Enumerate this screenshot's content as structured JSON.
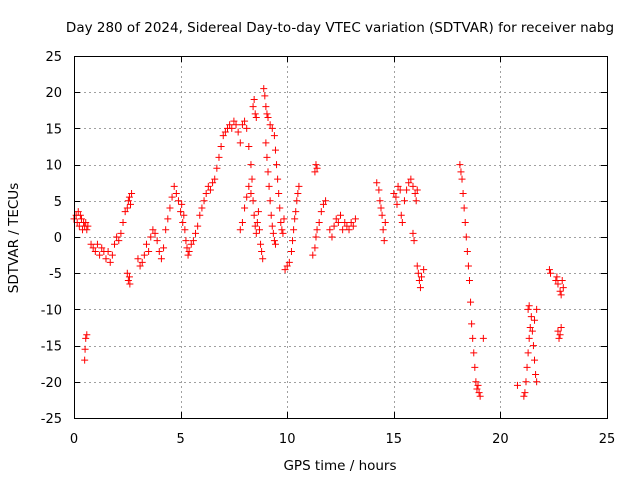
{
  "chart_data": {
    "type": "scatter",
    "title": "Day 280 of 2024, Sidereal Day-to-day VTEC variation (SDTVAR) for receiver nabg",
    "xlabel": "GPS time / hours",
    "ylabel": "SDTVAR / TECUs",
    "xlim": [
      0,
      25
    ],
    "ylim": [
      -25,
      25
    ],
    "x_ticks": [
      0,
      5,
      10,
      15,
      20,
      25
    ],
    "y_ticks": [
      -25,
      -20,
      -15,
      -10,
      -5,
      0,
      5,
      10,
      15,
      20,
      25
    ],
    "x_tick_labels": [
      "0",
      "5",
      "10",
      "15",
      "20",
      "25"
    ],
    "y_tick_labels": [
      "-25",
      "-20",
      "-15",
      "-10",
      "-5",
      "0",
      "5",
      "10",
      "15",
      "20",
      "25"
    ],
    "grid": true,
    "marker": "plus",
    "color": "#ff0000",
    "series": [
      {
        "name": "SDTVAR",
        "points": [
          [
            0.0,
            2.5
          ],
          [
            0.1,
            3.0
          ],
          [
            0.15,
            2.0
          ],
          [
            0.2,
            3.5
          ],
          [
            0.25,
            1.5
          ],
          [
            0.3,
            3.0
          ],
          [
            0.35,
            2.5
          ],
          [
            0.4,
            1.0
          ],
          [
            0.45,
            2.0
          ],
          [
            0.5,
            1.5
          ],
          [
            0.55,
            2.0
          ],
          [
            0.6,
            1.0
          ],
          [
            0.65,
            1.5
          ],
          [
            0.5,
            -17.0
          ],
          [
            0.52,
            -15.5
          ],
          [
            0.55,
            -14.0
          ],
          [
            0.6,
            -13.5
          ],
          [
            0.8,
            -1.0
          ],
          [
            0.9,
            -1.5
          ],
          [
            1.0,
            -2.0
          ],
          [
            1.1,
            -1.0
          ],
          [
            1.2,
            -2.5
          ],
          [
            1.3,
            -1.5
          ],
          [
            1.4,
            -2.0
          ],
          [
            1.5,
            -3.0
          ],
          [
            1.6,
            -2.0
          ],
          [
            1.7,
            -3.5
          ],
          [
            1.8,
            -2.5
          ],
          [
            1.9,
            -1.0
          ],
          [
            2.0,
            0.0
          ],
          [
            2.1,
            -0.5
          ],
          [
            2.2,
            0.5
          ],
          [
            2.3,
            2.0
          ],
          [
            2.4,
            3.5
          ],
          [
            2.5,
            4.0
          ],
          [
            2.55,
            5.0
          ],
          [
            2.6,
            5.5
          ],
          [
            2.65,
            4.5
          ],
          [
            2.7,
            6.0
          ],
          [
            2.5,
            -5.0
          ],
          [
            2.55,
            -6.0
          ],
          [
            2.6,
            -5.5
          ],
          [
            2.62,
            -6.5
          ],
          [
            3.0,
            -3.0
          ],
          [
            3.1,
            -4.0
          ],
          [
            3.2,
            -3.5
          ],
          [
            3.3,
            -2.5
          ],
          [
            3.4,
            -1.0
          ],
          [
            3.5,
            -2.0
          ],
          [
            3.6,
            0.0
          ],
          [
            3.7,
            1.0
          ],
          [
            3.8,
            0.5
          ],
          [
            3.9,
            -0.5
          ],
          [
            4.0,
            -2.0
          ],
          [
            4.1,
            -3.0
          ],
          [
            4.2,
            -1.5
          ],
          [
            4.3,
            1.0
          ],
          [
            4.4,
            2.5
          ],
          [
            4.5,
            4.0
          ],
          [
            4.6,
            5.5
          ],
          [
            4.7,
            7.0
          ],
          [
            4.8,
            6.0
          ],
          [
            4.9,
            5.0
          ],
          [
            5.0,
            3.5
          ],
          [
            5.05,
            4.5
          ],
          [
            5.1,
            2.0
          ],
          [
            5.15,
            3.0
          ],
          [
            5.2,
            1.0
          ],
          [
            5.25,
            -0.5
          ],
          [
            5.3,
            -1.5
          ],
          [
            5.35,
            -2.5
          ],
          [
            5.4,
            -2.0
          ],
          [
            5.5,
            -1.0
          ],
          [
            5.6,
            -0.5
          ],
          [
            5.7,
            0.5
          ],
          [
            5.8,
            1.5
          ],
          [
            5.9,
            3.0
          ],
          [
            6.0,
            4.0
          ],
          [
            6.1,
            5.0
          ],
          [
            6.2,
            6.0
          ],
          [
            6.3,
            7.0
          ],
          [
            6.4,
            6.5
          ],
          [
            6.5,
            7.5
          ],
          [
            6.6,
            8.0
          ],
          [
            6.7,
            9.5
          ],
          [
            6.8,
            11.0
          ],
          [
            6.9,
            12.5
          ],
          [
            7.0,
            14.0
          ],
          [
            7.1,
            14.5
          ],
          [
            7.2,
            15.0
          ],
          [
            7.3,
            15.5
          ],
          [
            7.4,
            15.0
          ],
          [
            7.5,
            16.0
          ],
          [
            7.6,
            15.5
          ],
          [
            7.7,
            14.5
          ],
          [
            7.8,
            13.0
          ],
          [
            7.9,
            15.5
          ],
          [
            8.0,
            16.0
          ],
          [
            8.1,
            15.0
          ],
          [
            8.2,
            12.5
          ],
          [
            8.3,
            10.0
          ],
          [
            7.8,
            1.0
          ],
          [
            7.9,
            2.0
          ],
          [
            8.0,
            4.0
          ],
          [
            8.1,
            5.5
          ],
          [
            8.2,
            7.0
          ],
          [
            8.3,
            6.0
          ],
          [
            8.35,
            8.0
          ],
          [
            8.4,
            5.0
          ],
          [
            8.45,
            3.0
          ],
          [
            8.5,
            1.5
          ],
          [
            8.55,
            0.5
          ],
          [
            8.6,
            2.0
          ],
          [
            8.65,
            3.5
          ],
          [
            8.7,
            1.0
          ],
          [
            8.75,
            -1.0
          ],
          [
            8.8,
            -2.0
          ],
          [
            8.85,
            -3.0
          ],
          [
            8.4,
            18.0
          ],
          [
            8.45,
            19.0
          ],
          [
            8.5,
            17.0
          ],
          [
            8.55,
            16.5
          ],
          [
            8.9,
            20.5
          ],
          [
            8.95,
            19.5
          ],
          [
            9.0,
            18.0
          ],
          [
            9.05,
            17.0
          ],
          [
            9.1,
            16.5
          ],
          [
            9.2,
            15.5
          ],
          [
            9.3,
            15.0
          ],
          [
            9.4,
            14.0
          ],
          [
            9.45,
            12.0
          ],
          [
            9.5,
            10.0
          ],
          [
            9.55,
            8.0
          ],
          [
            9.6,
            6.0
          ],
          [
            9.65,
            4.0
          ],
          [
            9.7,
            2.0
          ],
          [
            9.75,
            1.0
          ],
          [
            9.8,
            0.5
          ],
          [
            9.85,
            2.5
          ],
          [
            9.0,
            13.0
          ],
          [
            9.05,
            11.0
          ],
          [
            9.1,
            9.0
          ],
          [
            9.15,
            7.0
          ],
          [
            9.2,
            5.0
          ],
          [
            9.25,
            3.0
          ],
          [
            9.3,
            1.5
          ],
          [
            9.35,
            0.5
          ],
          [
            9.4,
            -0.5
          ],
          [
            9.45,
            -1.0
          ],
          [
            9.9,
            -4.5
          ],
          [
            10.0,
            -4.0
          ],
          [
            10.1,
            -3.5
          ],
          [
            10.2,
            -2.0
          ],
          [
            10.25,
            -0.5
          ],
          [
            10.3,
            1.0
          ],
          [
            10.35,
            2.5
          ],
          [
            10.4,
            3.5
          ],
          [
            10.45,
            5.0
          ],
          [
            10.5,
            6.0
          ],
          [
            10.55,
            7.0
          ],
          [
            11.2,
            -2.5
          ],
          [
            11.3,
            -1.5
          ],
          [
            11.35,
            0.0
          ],
          [
            11.4,
            1.0
          ],
          [
            11.5,
            2.0
          ],
          [
            11.6,
            3.5
          ],
          [
            11.7,
            4.5
          ],
          [
            11.8,
            5.0
          ],
          [
            11.3,
            9.0
          ],
          [
            11.35,
            10.0
          ],
          [
            11.4,
            9.5
          ],
          [
            12.0,
            1.0
          ],
          [
            12.1,
            0.0
          ],
          [
            12.2,
            1.5
          ],
          [
            12.3,
            2.5
          ],
          [
            12.4,
            2.0
          ],
          [
            12.5,
            3.0
          ],
          [
            12.6,
            1.0
          ],
          [
            12.7,
            2.0
          ],
          [
            12.8,
            1.5
          ],
          [
            12.9,
            1.0
          ],
          [
            13.0,
            2.0
          ],
          [
            13.1,
            1.5
          ],
          [
            13.2,
            2.5
          ],
          [
            14.2,
            7.5
          ],
          [
            14.3,
            6.5
          ],
          [
            14.35,
            5.0
          ],
          [
            14.4,
            4.0
          ],
          [
            14.45,
            3.0
          ],
          [
            14.5,
            1.0
          ],
          [
            14.55,
            -0.5
          ],
          [
            14.6,
            2.0
          ],
          [
            15.0,
            6.0
          ],
          [
            15.1,
            5.5
          ],
          [
            15.15,
            4.5
          ],
          [
            15.2,
            7.0
          ],
          [
            15.3,
            6.5
          ],
          [
            15.35,
            3.0
          ],
          [
            15.4,
            2.0
          ],
          [
            15.5,
            5.0
          ],
          [
            15.6,
            6.5
          ],
          [
            15.7,
            7.5
          ],
          [
            15.8,
            8.0
          ],
          [
            15.9,
            7.0
          ],
          [
            16.0,
            6.0
          ],
          [
            16.05,
            5.0
          ],
          [
            16.1,
            6.5
          ],
          [
            15.9,
            0.5
          ],
          [
            15.95,
            -0.5
          ],
          [
            16.1,
            -4.0
          ],
          [
            16.15,
            -5.0
          ],
          [
            16.2,
            -6.0
          ],
          [
            16.25,
            -7.0
          ],
          [
            16.3,
            -5.5
          ],
          [
            16.4,
            -4.5
          ],
          [
            18.1,
            10.0
          ],
          [
            18.15,
            9.0
          ],
          [
            18.2,
            8.0
          ],
          [
            18.25,
            6.0
          ],
          [
            18.3,
            4.0
          ],
          [
            18.35,
            2.0
          ],
          [
            18.4,
            0.0
          ],
          [
            18.45,
            -2.0
          ],
          [
            18.5,
            -4.0
          ],
          [
            18.55,
            -6.0
          ],
          [
            18.6,
            -9.0
          ],
          [
            18.65,
            -12.0
          ],
          [
            18.7,
            -14.0
          ],
          [
            18.75,
            -16.0
          ],
          [
            18.8,
            -18.0
          ],
          [
            18.85,
            -20.0
          ],
          [
            18.9,
            -21.0
          ],
          [
            18.95,
            -20.5
          ],
          [
            19.0,
            -21.5
          ],
          [
            19.05,
            -22.0
          ],
          [
            19.2,
            -14.0
          ],
          [
            20.8,
            -20.5
          ],
          [
            21.1,
            -22.0
          ],
          [
            21.15,
            -21.5
          ],
          [
            21.2,
            -20.0
          ],
          [
            21.25,
            -18.0
          ],
          [
            21.3,
            -16.0
          ],
          [
            21.35,
            -14.0
          ],
          [
            21.4,
            -12.5
          ],
          [
            21.45,
            -11.0
          ],
          [
            21.5,
            -13.0
          ],
          [
            21.55,
            -15.0
          ],
          [
            21.6,
            -17.0
          ],
          [
            21.65,
            -19.0
          ],
          [
            21.7,
            -20.0
          ],
          [
            21.3,
            -10.0
          ],
          [
            21.35,
            -9.5
          ],
          [
            21.6,
            -11.5
          ],
          [
            21.7,
            -10.0
          ],
          [
            22.3,
            -4.5
          ],
          [
            22.35,
            -5.0
          ],
          [
            22.6,
            -6.0
          ],
          [
            22.65,
            -5.5
          ],
          [
            22.7,
            -6.5
          ],
          [
            22.8,
            -7.5
          ],
          [
            22.85,
            -8.0
          ],
          [
            22.9,
            -6.0
          ],
          [
            22.95,
            -7.0
          ],
          [
            22.7,
            -13.0
          ],
          [
            22.75,
            -14.0
          ],
          [
            22.8,
            -13.5
          ],
          [
            22.85,
            -12.5
          ]
        ]
      }
    ]
  }
}
